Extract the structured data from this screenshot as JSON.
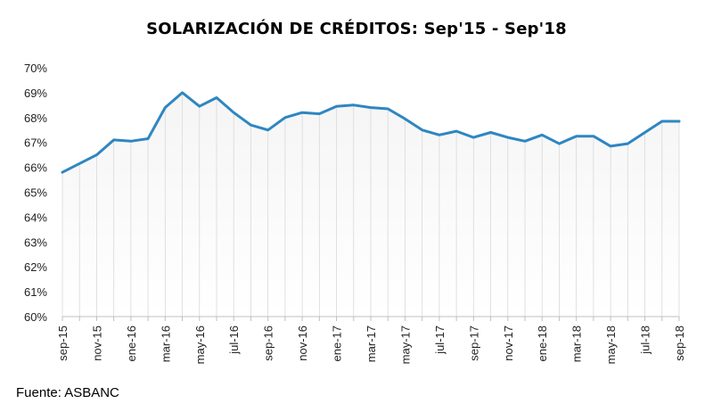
{
  "title": "SOLARIZACIÓN DE CRÉDITOS: Sep'15 - Sep'18",
  "source": "Fuente: ASBANC",
  "chart_data": {
    "type": "area",
    "title": "SOLARIZACIÓN DE CRÉDITOS: Sep'15 - Sep'18",
    "xlabel": "",
    "ylabel": "",
    "ylim": [
      60,
      70
    ],
    "grid": false,
    "legend": "none",
    "line_color": "#2e86c1",
    "fill_color": "#f0f0f0",
    "yticks": [
      "60%",
      "61%",
      "62%",
      "63%",
      "64%",
      "65%",
      "66%",
      "67%",
      "68%",
      "69%",
      "70%"
    ],
    "xtick_labels": [
      "sep-15",
      "nov-15",
      "ene-16",
      "mar-16",
      "may-16",
      "jul-16",
      "sep-16",
      "nov-16",
      "ene-17",
      "mar-17",
      "may-17",
      "jul-17",
      "sep-17",
      "nov-17",
      "ene-18",
      "mar-18",
      "may-18",
      "jul-18",
      "sep-18"
    ],
    "x": [
      "sep-15",
      "oct-15",
      "nov-15",
      "dic-15",
      "ene-16",
      "feb-16",
      "mar-16",
      "abr-16",
      "may-16",
      "jun-16",
      "jul-16",
      "ago-16",
      "sep-16",
      "oct-16",
      "nov-16",
      "dic-16",
      "ene-17",
      "feb-17",
      "mar-17",
      "abr-17",
      "may-17",
      "jun-17",
      "jul-17",
      "ago-17",
      "sep-17",
      "oct-17",
      "nov-17",
      "dic-17",
      "ene-18",
      "feb-18",
      "mar-18",
      "abr-18",
      "may-18",
      "jun-18",
      "jul-18",
      "ago-18",
      "sep-18"
    ],
    "values": [
      65.8,
      66.15,
      66.5,
      67.1,
      67.05,
      67.15,
      68.4,
      69.0,
      68.45,
      68.8,
      68.2,
      67.7,
      67.5,
      68.0,
      68.2,
      68.15,
      68.45,
      68.5,
      68.4,
      68.35,
      67.95,
      67.5,
      67.3,
      67.45,
      67.2,
      67.4,
      67.2,
      67.05,
      67.3,
      66.95,
      67.25,
      67.25,
      66.85,
      66.95,
      67.4,
      67.85,
      67.85
    ]
  }
}
